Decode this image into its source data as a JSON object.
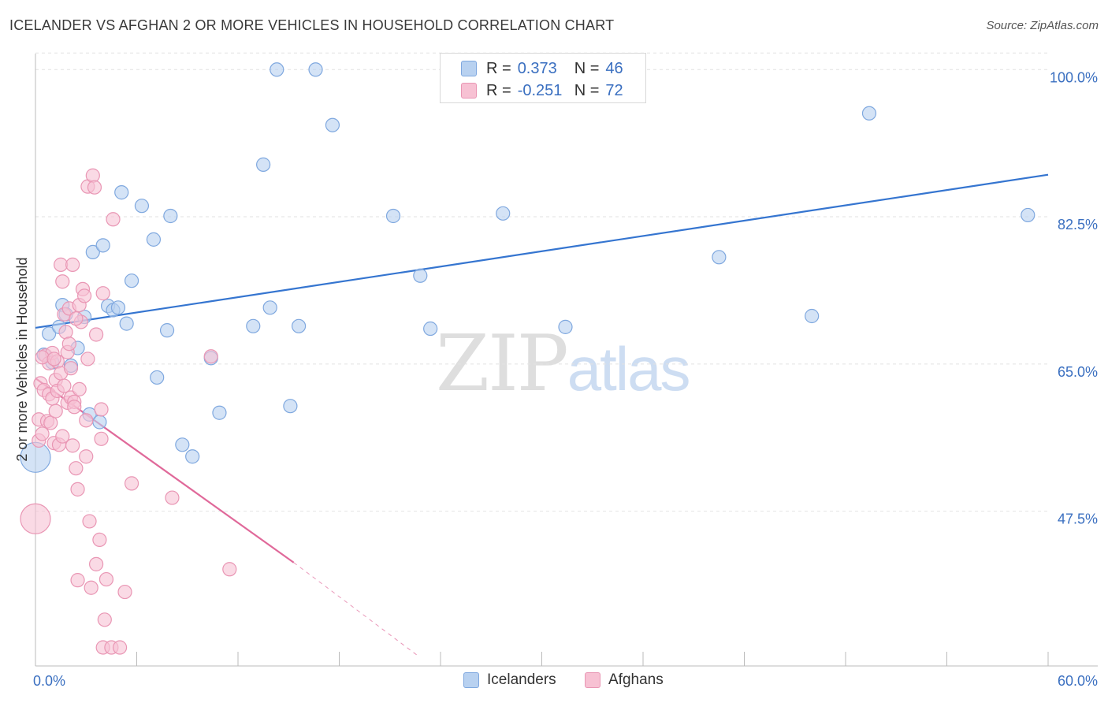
{
  "title": "ICELANDER VS AFGHAN 2 OR MORE VEHICLES IN HOUSEHOLD CORRELATION CHART",
  "source": "Source: ZipAtlas.com",
  "watermark": {
    "zip": "ZIP",
    "atlas": "atlas"
  },
  "legend": {
    "r_label": "R =",
    "n_label": "N =",
    "icelanders": {
      "r": "0.373",
      "n": "46"
    },
    "afghans": {
      "r": "-0.251",
      "n": "72"
    }
  },
  "colors": {
    "blue_fill": "#b8d1f0",
    "blue_stroke": "#7fa8df",
    "blue_line": "#3575d0",
    "pink_fill": "#f7c1d3",
    "pink_stroke": "#e996b4",
    "pink_line": "#e0699a",
    "tick_label": "#3a6fc0",
    "grid": "#e2e2e2"
  },
  "chart_data": {
    "type": "scatter",
    "title": "ICELANDER VS AFGHAN 2 OR MORE VEHICLES IN HOUSEHOLD CORRELATION CHART",
    "xlabel": "",
    "ylabel": "2 or more Vehicles in Household",
    "xlim": [
      0,
      60
    ],
    "ylim": [
      29.1,
      101.9
    ],
    "x_tick_labels": [
      {
        "value": 0,
        "label": "0.0%"
      },
      {
        "value": 60,
        "label": "60.0%"
      }
    ],
    "y_ticks": [
      {
        "value": 100,
        "label": "100.0%"
      },
      {
        "value": 82.5,
        "label": "82.5%"
      },
      {
        "value": 65,
        "label": "65.0%"
      },
      {
        "value": 47.5,
        "label": "47.5%"
      }
    ],
    "series": [
      {
        "name": "Icelanders",
        "r": 0.373,
        "n": 46,
        "trend": {
          "x": [
            0,
            60
          ],
          "y": [
            69.3,
            87.5
          ],
          "dashed_from": null
        },
        "points": [
          {
            "x": 0,
            "y": 53.9,
            "big": true
          },
          {
            "x": 0.5,
            "y": 66.1
          },
          {
            "x": 0.8,
            "y": 68.6
          },
          {
            "x": 1.0,
            "y": 65.2
          },
          {
            "x": 1.4,
            "y": 69.4
          },
          {
            "x": 1.6,
            "y": 72.0
          },
          {
            "x": 1.8,
            "y": 70.9
          },
          {
            "x": 2.1,
            "y": 64.8
          },
          {
            "x": 2.5,
            "y": 66.9
          },
          {
            "x": 2.9,
            "y": 70.6
          },
          {
            "x": 3.2,
            "y": 59.0
          },
          {
            "x": 3.4,
            "y": 78.3
          },
          {
            "x": 3.8,
            "y": 58.1
          },
          {
            "x": 4.0,
            "y": 79.1
          },
          {
            "x": 4.3,
            "y": 71.9
          },
          {
            "x": 4.6,
            "y": 71.4
          },
          {
            "x": 4.9,
            "y": 71.7
          },
          {
            "x": 5.1,
            "y": 85.4
          },
          {
            "x": 5.4,
            "y": 69.8
          },
          {
            "x": 5.7,
            "y": 74.9
          },
          {
            "x": 6.3,
            "y": 83.8
          },
          {
            "x": 7.0,
            "y": 79.8
          },
          {
            "x": 7.2,
            "y": 63.4
          },
          {
            "x": 7.8,
            "y": 69.0
          },
          {
            "x": 8.0,
            "y": 82.6
          },
          {
            "x": 8.7,
            "y": 55.4
          },
          {
            "x": 9.3,
            "y": 54.0
          },
          {
            "x": 10.4,
            "y": 65.7
          },
          {
            "x": 10.9,
            "y": 59.2
          },
          {
            "x": 12.9,
            "y": 69.5
          },
          {
            "x": 13.5,
            "y": 88.7
          },
          {
            "x": 13.9,
            "y": 71.7
          },
          {
            "x": 14.3,
            "y": 100.0
          },
          {
            "x": 15.1,
            "y": 60.0
          },
          {
            "x": 15.6,
            "y": 69.5
          },
          {
            "x": 16.6,
            "y": 100.0
          },
          {
            "x": 17.6,
            "y": 93.4
          },
          {
            "x": 21.2,
            "y": 82.6
          },
          {
            "x": 22.8,
            "y": 75.5
          },
          {
            "x": 23.4,
            "y": 69.2
          },
          {
            "x": 27.7,
            "y": 82.9
          },
          {
            "x": 31.4,
            "y": 69.4
          },
          {
            "x": 40.5,
            "y": 77.7
          },
          {
            "x": 46.0,
            "y": 70.7
          },
          {
            "x": 49.4,
            "y": 94.8
          },
          {
            "x": 58.8,
            "y": 82.7
          }
        ]
      },
      {
        "name": "Afghans",
        "r": -0.251,
        "n": 72,
        "trend": {
          "x": [
            0,
            15.3
          ],
          "y": [
            63.3,
            41.4
          ],
          "dashed_to": {
            "x": 22.6,
            "y": 30.4
          }
        },
        "points": [
          {
            "x": 0,
            "y": 46.6,
            "big": true
          },
          {
            "x": 0.2,
            "y": 58.4
          },
          {
            "x": 0.2,
            "y": 55.9
          },
          {
            "x": 0.3,
            "y": 62.7
          },
          {
            "x": 0.4,
            "y": 56.7
          },
          {
            "x": 0.5,
            "y": 61.9
          },
          {
            "x": 0.6,
            "y": 66.0
          },
          {
            "x": 0.7,
            "y": 58.2
          },
          {
            "x": 0.8,
            "y": 65.1
          },
          {
            "x": 0.8,
            "y": 61.4
          },
          {
            "x": 0.9,
            "y": 58.0
          },
          {
            "x": 1.0,
            "y": 66.3
          },
          {
            "x": 1.0,
            "y": 60.9
          },
          {
            "x": 1.1,
            "y": 55.6
          },
          {
            "x": 1.2,
            "y": 63.1
          },
          {
            "x": 1.2,
            "y": 59.4
          },
          {
            "x": 1.3,
            "y": 65.3
          },
          {
            "x": 1.3,
            "y": 61.8
          },
          {
            "x": 1.4,
            "y": 55.4
          },
          {
            "x": 1.5,
            "y": 76.8
          },
          {
            "x": 1.5,
            "y": 63.9
          },
          {
            "x": 1.6,
            "y": 74.8
          },
          {
            "x": 1.6,
            "y": 56.4
          },
          {
            "x": 1.7,
            "y": 70.9
          },
          {
            "x": 1.8,
            "y": 68.8
          },
          {
            "x": 1.9,
            "y": 66.4
          },
          {
            "x": 1.9,
            "y": 60.4
          },
          {
            "x": 2.0,
            "y": 67.4
          },
          {
            "x": 2.0,
            "y": 71.6
          },
          {
            "x": 2.1,
            "y": 64.5
          },
          {
            "x": 2.1,
            "y": 61.0
          },
          {
            "x": 2.2,
            "y": 76.8
          },
          {
            "x": 2.2,
            "y": 55.3
          },
          {
            "x": 2.3,
            "y": 60.5
          },
          {
            "x": 2.3,
            "y": 59.9
          },
          {
            "x": 2.4,
            "y": 52.6
          },
          {
            "x": 2.5,
            "y": 50.1
          },
          {
            "x": 2.5,
            "y": 39.3
          },
          {
            "x": 2.6,
            "y": 62.0
          },
          {
            "x": 2.6,
            "y": 72.0
          },
          {
            "x": 2.7,
            "y": 70.0
          },
          {
            "x": 2.8,
            "y": 73.9
          },
          {
            "x": 2.9,
            "y": 73.1
          },
          {
            "x": 3.0,
            "y": 54.0
          },
          {
            "x": 3.0,
            "y": 58.3
          },
          {
            "x": 3.1,
            "y": 86.1
          },
          {
            "x": 3.1,
            "y": 65.6
          },
          {
            "x": 3.2,
            "y": 46.3
          },
          {
            "x": 3.3,
            "y": 38.4
          },
          {
            "x": 3.4,
            "y": 87.4
          },
          {
            "x": 3.5,
            "y": 86.0
          },
          {
            "x": 3.6,
            "y": 41.2
          },
          {
            "x": 3.6,
            "y": 68.5
          },
          {
            "x": 3.8,
            "y": 44.1
          },
          {
            "x": 3.9,
            "y": 59.6
          },
          {
            "x": 3.9,
            "y": 56.1
          },
          {
            "x": 4.0,
            "y": 73.4
          },
          {
            "x": 4.0,
            "y": 31.3
          },
          {
            "x": 4.1,
            "y": 34.6
          },
          {
            "x": 4.2,
            "y": 39.4
          },
          {
            "x": 4.5,
            "y": 31.3
          },
          {
            "x": 4.6,
            "y": 82.2
          },
          {
            "x": 5.0,
            "y": 31.3
          },
          {
            "x": 5.3,
            "y": 37.9
          },
          {
            "x": 5.7,
            "y": 50.8
          },
          {
            "x": 8.1,
            "y": 49.1
          },
          {
            "x": 10.4,
            "y": 65.9
          },
          {
            "x": 11.5,
            "y": 40.6
          },
          {
            "x": 0.4,
            "y": 65.8
          },
          {
            "x": 1.1,
            "y": 65.6
          },
          {
            "x": 2.4,
            "y": 70.4
          },
          {
            "x": 1.7,
            "y": 62.4
          }
        ]
      }
    ]
  },
  "bottom_legend": {
    "icelanders": "Icelanders",
    "afghans": "Afghans"
  }
}
